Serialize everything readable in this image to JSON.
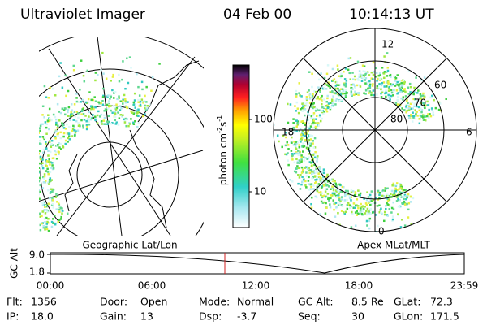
{
  "header": {
    "instrument": "Ultraviolet Imager",
    "date": "04 Feb 00",
    "time": "10:14:13 UT"
  },
  "left_panel": {
    "label": "Geographic Lat/Lon"
  },
  "color_bar": {
    "label_parts": [
      "photon cm",
      "-2",
      "s",
      "-1"
    ],
    "tick_labels": [
      "100",
      "10"
    ]
  },
  "right_panel": {
    "label": "Apex MLat/MLT",
    "mlt_labels": [
      "12",
      "18",
      "6",
      "0"
    ],
    "lat_labels": [
      "80",
      "70",
      "60"
    ]
  },
  "orbit_plot": {
    "y_label": "GC Alt",
    "y_tick_labels": [
      "9.0",
      "1.8"
    ],
    "x_tick_labels": [
      "00:00",
      "06:00",
      "12:00",
      "18:00",
      "23:59"
    ]
  },
  "footer": {
    "rows": [
      [
        [
          "Flt:",
          "1356"
        ],
        [
          "Door:",
          "Open"
        ],
        [
          "Mode:",
          "Normal"
        ],
        [
          "GC Alt:",
          "8.5 Re"
        ],
        [
          "GLat:",
          "72.3"
        ]
      ],
      [
        [
          "IP:",
          "18.0"
        ],
        [
          "Gain:",
          "13"
        ],
        [
          "Dsp:",
          "-3.7"
        ],
        [
          "Seq:",
          "30"
        ],
        [
          "GLon:",
          "171.5"
        ]
      ]
    ]
  }
}
